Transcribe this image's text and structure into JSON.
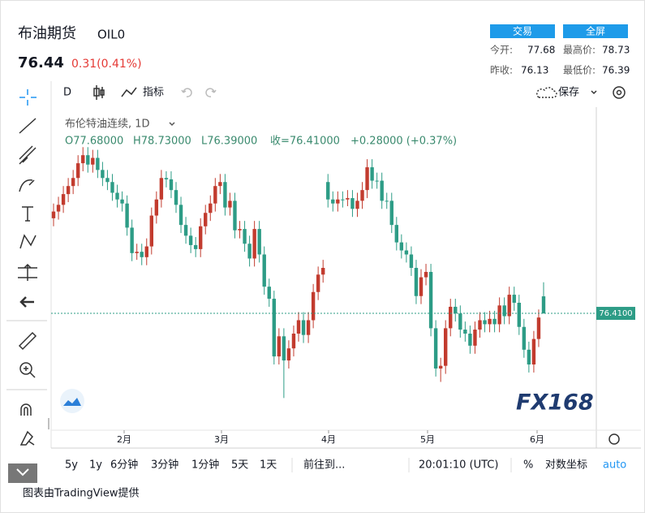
{
  "header": {
    "name": "布油期货",
    "code": "OIL0",
    "price": 76.44,
    "change": "0.31(0.41%)",
    "buttons": [
      "交易",
      "全屏"
    ],
    "stats": [
      [
        "今开:",
        77.68
      ],
      [
        "最高价:",
        78.73
      ],
      [
        "昨收:",
        76.13
      ],
      [
        "最低价:",
        76.39
      ]
    ]
  },
  "toolbar": {
    "interval": "D",
    "indicators": "指标",
    "save": "保存"
  },
  "chart": {
    "type": "candlestick",
    "legend_title": "布伦特油连续, 1D",
    "legend_values": [
      "O77.68000",
      "H78.73000",
      "L76.39000",
      "收=76.41000",
      "+0.28000 (+0.37%)"
    ],
    "up_color": "#c23b2e",
    "down_color": "#2d9c86",
    "ylim": [
      67.7,
      91.6
    ],
    "current_price": {
      "value": 76.41,
      "label": "76.4100"
    },
    "months": [
      "2月",
      "3月",
      "4月",
      "5月",
      "6月"
    ],
    "watermark": "FX168",
    "candles": [
      [
        83.5,
        84.6,
        82.9,
        84.0
      ],
      [
        84.0,
        85.1,
        83.4,
        84.5
      ],
      [
        84.5,
        85.9,
        83.9,
        85.3
      ],
      [
        85.3,
        86.5,
        84.7,
        85.9
      ],
      [
        85.9,
        87.1,
        85.3,
        86.5
      ],
      [
        86.5,
        88.2,
        85.9,
        87.6
      ],
      [
        87.6,
        88.8,
        87.0,
        88.2
      ],
      [
        88.2,
        88.8,
        86.9,
        87.5
      ],
      [
        87.5,
        88.6,
        86.9,
        88.0
      ],
      [
        88.0,
        88.6,
        86.5,
        87.1
      ],
      [
        87.1,
        87.7,
        85.9,
        86.5
      ],
      [
        86.5,
        87.1,
        85.6,
        86.2
      ],
      [
        86.2,
        86.8,
        84.8,
        85.4
      ],
      [
        85.4,
        86.0,
        84.3,
        84.9
      ],
      [
        84.9,
        85.5,
        84.0,
        84.6
      ],
      [
        84.6,
        85.2,
        82.2,
        82.8
      ],
      [
        82.8,
        83.4,
        80.3,
        80.9
      ],
      [
        80.9,
        81.6,
        80.4,
        81.0
      ],
      [
        81.0,
        81.6,
        80.0,
        80.6
      ],
      [
        80.6,
        82.0,
        80.0,
        81.4
      ],
      [
        81.4,
        84.3,
        80.8,
        83.7
      ],
      [
        83.7,
        85.5,
        83.1,
        84.9
      ],
      [
        84.9,
        87.1,
        84.3,
        86.5
      ],
      [
        86.5,
        87.0,
        85.8,
        86.4
      ],
      [
        86.4,
        87.0,
        85.0,
        85.6
      ],
      [
        85.6,
        86.2,
        83.9,
        84.5
      ],
      [
        84.5,
        85.1,
        82.4,
        83.0
      ],
      [
        83.0,
        83.6,
        81.6,
        82.2
      ],
      [
        82.2,
        82.8,
        80.9,
        81.5
      ],
      [
        81.5,
        82.1,
        80.6,
        81.2
      ],
      [
        81.2,
        83.5,
        80.6,
        82.9
      ],
      [
        82.9,
        84.5,
        82.3,
        83.9
      ],
      [
        83.9,
        85.2,
        83.3,
        84.6
      ],
      [
        84.6,
        86.5,
        84.0,
        85.9
      ],
      [
        85.9,
        86.8,
        85.3,
        86.2
      ],
      [
        86.2,
        86.8,
        83.7,
        84.3
      ],
      [
        84.3,
        85.4,
        83.7,
        84.8
      ],
      [
        84.8,
        85.4,
        82.0,
        82.6
      ],
      [
        82.6,
        83.3,
        82.0,
        82.7
      ],
      [
        82.7,
        83.3,
        81.0,
        81.6
      ],
      [
        81.6,
        82.2,
        79.9,
        80.5
      ],
      [
        80.5,
        83.3,
        79.9,
        82.7
      ],
      [
        82.7,
        83.3,
        80.2,
        80.8
      ],
      [
        80.8,
        81.4,
        77.8,
        78.4
      ],
      [
        78.4,
        79.0,
        76.9,
        77.5
      ],
      [
        77.5,
        78.1,
        72.6,
        73.2
      ],
      [
        73.2,
        75.3,
        72.6,
        74.7
      ],
      [
        74.7,
        75.3,
        70.1,
        72.9
      ],
      [
        72.9,
        74.4,
        72.3,
        73.8
      ],
      [
        73.8,
        75.5,
        73.2,
        74.9
      ],
      [
        74.9,
        76.5,
        74.3,
        75.9
      ],
      [
        75.9,
        76.5,
        74.2,
        74.8
      ],
      [
        74.8,
        76.5,
        74.2,
        75.9
      ],
      [
        75.9,
        78.6,
        75.3,
        78.0
      ],
      [
        78.0,
        79.9,
        77.4,
        79.3
      ],
      [
        79.3,
        80.4,
        78.7,
        79.8
      ],
      [
        86.2,
        86.8,
        84.3,
        84.9
      ],
      [
        84.9,
        85.5,
        84.0,
        84.6
      ],
      [
        84.6,
        85.5,
        84.0,
        84.9
      ],
      [
        84.9,
        85.5,
        84.3,
        84.9
      ],
      [
        84.9,
        85.6,
        84.4,
        85.0
      ],
      [
        85.0,
        85.6,
        83.6,
        84.2
      ],
      [
        84.2,
        85.4,
        83.6,
        84.8
      ],
      [
        84.8,
        86.2,
        84.2,
        85.6
      ],
      [
        85.6,
        87.9,
        85.0,
        87.3
      ],
      [
        87.3,
        87.9,
        85.7,
        86.3
      ],
      [
        86.3,
        86.9,
        85.7,
        86.3
      ],
      [
        86.3,
        86.9,
        84.2,
        84.8
      ],
      [
        84.8,
        85.4,
        84.2,
        84.8
      ],
      [
        84.8,
        85.4,
        82.4,
        83.0
      ],
      [
        83.0,
        83.6,
        81.1,
        81.7
      ],
      [
        81.7,
        82.3,
        80.5,
        81.1
      ],
      [
        81.1,
        81.7,
        80.2,
        80.8
      ],
      [
        80.8,
        81.4,
        79.2,
        79.8
      ],
      [
        79.8,
        80.4,
        77.1,
        77.7
      ],
      [
        77.7,
        79.7,
        77.1,
        79.1
      ],
      [
        79.1,
        80.1,
        78.5,
        79.5
      ],
      [
        79.5,
        80.1,
        74.7,
        75.3
      ],
      [
        75.3,
        75.9,
        71.7,
        72.3
      ],
      [
        72.3,
        73.1,
        71.3,
        72.5
      ],
      [
        72.5,
        75.9,
        71.9,
        75.3
      ],
      [
        75.3,
        77.5,
        74.7,
        76.9
      ],
      [
        76.9,
        77.5,
        75.8,
        76.4
      ],
      [
        76.4,
        77.0,
        74.6,
        75.2
      ],
      [
        75.2,
        75.8,
        74.3,
        74.9
      ],
      [
        74.9,
        75.5,
        73.4,
        74.0
      ],
      [
        74.0,
        75.8,
        73.4,
        75.2
      ],
      [
        75.2,
        76.5,
        74.6,
        75.9
      ],
      [
        75.9,
        76.5,
        75.0,
        75.6
      ],
      [
        75.6,
        76.6,
        75.0,
        76.0
      ],
      [
        76.0,
        76.6,
        75.0,
        75.6
      ],
      [
        75.6,
        77.6,
        75.0,
        77.0
      ],
      [
        77.0,
        77.6,
        75.6,
        76.2
      ],
      [
        76.2,
        78.4,
        75.6,
        77.8
      ],
      [
        77.8,
        78.4,
        76.6,
        77.2
      ],
      [
        77.2,
        77.8,
        74.8,
        75.4
      ],
      [
        75.4,
        76.0,
        73.1,
        73.7
      ],
      [
        73.7,
        74.3,
        72.0,
        72.6
      ],
      [
        72.6,
        75.1,
        72.0,
        74.5
      ],
      [
        74.5,
        76.7,
        73.9,
        76.1
      ],
      [
        77.68,
        78.73,
        76.39,
        76.41
      ]
    ]
  },
  "bottom_bar": {
    "ranges": [
      "5y",
      "1y",
      "6分钟",
      "3分钟",
      "1分钟",
      "5天",
      "1天"
    ],
    "goto": "前往到...",
    "time": "20:01:10 (UTC)",
    "percent": "%",
    "log": "对数坐标",
    "auto": "auto"
  },
  "footer": "图表由TradingView提供"
}
